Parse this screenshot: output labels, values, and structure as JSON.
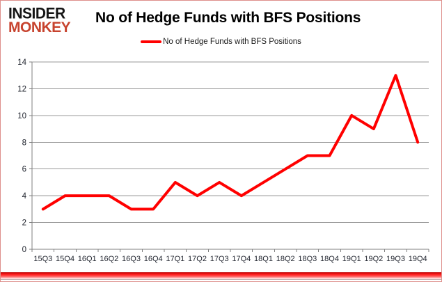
{
  "brand": {
    "line1": "INSIDER",
    "line2": "MONKEY"
  },
  "header": {
    "title": "No of Hedge Funds with BFS Positions"
  },
  "legend": {
    "label": "No of Hedge Funds with BFS Positions"
  },
  "chart_data": {
    "type": "line",
    "title": "No of Hedge Funds with BFS Positions",
    "categories": [
      "15Q3",
      "15Q4",
      "16Q1",
      "16Q2",
      "16Q3",
      "16Q4",
      "17Q1",
      "17Q2",
      "17Q3",
      "17Q4",
      "18Q1",
      "18Q2",
      "18Q3",
      "18Q4",
      "19Q1",
      "19Q2",
      "19Q3",
      "19Q4"
    ],
    "series": [
      {
        "name": "No of Hedge Funds with BFS Positions",
        "values": [
          3,
          4,
          4,
          4,
          3,
          3,
          5,
          4,
          5,
          4,
          5,
          6,
          7,
          7,
          10,
          9,
          13,
          8
        ],
        "color": "#ff0000"
      }
    ],
    "xlabel": "",
    "ylabel": "",
    "ylim": [
      0,
      14
    ],
    "yticks": [
      0,
      2,
      4,
      6,
      8,
      10,
      12,
      14
    ],
    "grid": true,
    "legend_position": "top-center"
  },
  "colors": {
    "line": "#ff0000",
    "logo_accent": "#c7432e",
    "logo_main": "#151515",
    "gridline": "#9a9a9a",
    "axis": "#7f7f7f",
    "tick_label": "#20242e",
    "frame_border": "#de8f8a",
    "bottom_bar": "#ff0000"
  }
}
